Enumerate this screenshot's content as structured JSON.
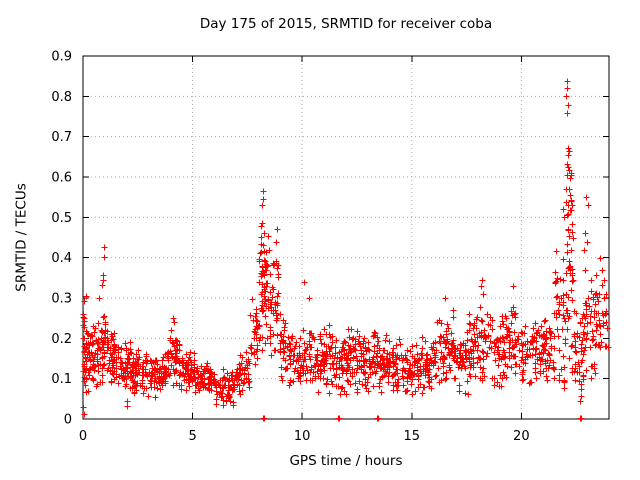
{
  "chart": {
    "title": "Day 175 of 2015, SRMTID for receiver coba",
    "xlabel": "GPS time / hours",
    "ylabel": "SRMTID / TECUs"
  },
  "chart_data": {
    "type": "scatter",
    "title": "Day 175 of 2015, SRMTID for receiver coba",
    "xlabel": "GPS time / hours",
    "ylabel": "SRMTID / TECUs",
    "xlim": [
      0,
      24
    ],
    "ylim": [
      0,
      0.9
    ],
    "xticks": [
      0,
      5,
      10,
      15,
      20
    ],
    "xtick_labels": [
      "0",
      "5",
      "10",
      "15",
      "20"
    ],
    "yticks": [
      0,
      0.1,
      0.2,
      0.3,
      0.4,
      0.5,
      0.6,
      0.7,
      0.8,
      0.9
    ],
    "ytick_labels": [
      "0",
      "0.1",
      "0.2",
      "0.3",
      "0.4",
      "0.5",
      "0.6",
      "0.7",
      "0.8",
      "0.9"
    ],
    "grid": "dotted",
    "grid_color": "#a8a8a8",
    "frame_color": "#000000",
    "marker": "plus",
    "marker_color": "#ff0000",
    "marker_size_px": 7,
    "legend": "none",
    "cluster_encoding": [
      "x_start",
      "x_end",
      "count",
      "y_min",
      "y_max"
    ],
    "clusters": [
      [
        0.0,
        0.15,
        25,
        0.02,
        0.3
      ],
      [
        0.1,
        0.5,
        40,
        0.06,
        0.25
      ],
      [
        0.4,
        0.9,
        40,
        0.08,
        0.26
      ],
      [
        0.85,
        1.15,
        25,
        0.1,
        0.3
      ],
      [
        1.1,
        1.6,
        45,
        0.08,
        0.24
      ],
      [
        1.6,
        2.2,
        50,
        0.07,
        0.2
      ],
      [
        2.2,
        3.0,
        70,
        0.05,
        0.18
      ],
      [
        3.0,
        3.8,
        70,
        0.05,
        0.17
      ],
      [
        3.8,
        4.4,
        50,
        0.08,
        0.23
      ],
      [
        4.4,
        5.2,
        65,
        0.06,
        0.17
      ],
      [
        5.2,
        6.0,
        60,
        0.05,
        0.15
      ],
      [
        6.0,
        7.0,
        70,
        0.025,
        0.13
      ],
      [
        7.0,
        7.6,
        45,
        0.05,
        0.17
      ],
      [
        7.6,
        8.0,
        30,
        0.1,
        0.32
      ],
      [
        8.0,
        8.5,
        55,
        0.14,
        0.5
      ],
      [
        8.1,
        8.35,
        12,
        0.3,
        0.525
      ],
      [
        8.5,
        8.95,
        40,
        0.12,
        0.42
      ],
      [
        8.95,
        9.4,
        35,
        0.08,
        0.28
      ],
      [
        9.4,
        10.0,
        45,
        0.07,
        0.22
      ],
      [
        10.0,
        10.5,
        35,
        0.07,
        0.24
      ],
      [
        10.5,
        11.3,
        65,
        0.06,
        0.24
      ],
      [
        11.3,
        12.0,
        55,
        0.05,
        0.22
      ],
      [
        12.0,
        12.8,
        65,
        0.06,
        0.24
      ],
      [
        12.8,
        13.6,
        65,
        0.06,
        0.22
      ],
      [
        13.6,
        14.5,
        70,
        0.06,
        0.22
      ],
      [
        14.5,
        15.3,
        60,
        0.05,
        0.2
      ],
      [
        15.3,
        16.1,
        60,
        0.06,
        0.21
      ],
      [
        16.1,
        17.0,
        65,
        0.07,
        0.28
      ],
      [
        17.0,
        17.6,
        45,
        0.06,
        0.22
      ],
      [
        17.6,
        18.4,
        60,
        0.08,
        0.3
      ],
      [
        18.4,
        19.3,
        60,
        0.07,
        0.28
      ],
      [
        19.3,
        20.0,
        50,
        0.08,
        0.3
      ],
      [
        20.0,
        20.9,
        65,
        0.08,
        0.26
      ],
      [
        20.9,
        21.5,
        45,
        0.08,
        0.26
      ],
      [
        21.5,
        22.0,
        40,
        0.06,
        0.45
      ],
      [
        22.0,
        22.35,
        35,
        0.1,
        0.6
      ],
      [
        22.1,
        22.3,
        10,
        0.45,
        0.67
      ],
      [
        22.3,
        22.8,
        40,
        0.03,
        0.3
      ],
      [
        22.8,
        23.35,
        45,
        0.08,
        0.38
      ],
      [
        23.35,
        23.95,
        35,
        0.08,
        0.4
      ]
    ],
    "notable_points": [
      [
        0.0,
        0.12
      ],
      [
        0.0,
        0.2
      ],
      [
        0.01,
        0.26
      ],
      [
        0.02,
        0.03
      ],
      [
        0.06,
        0.012
      ],
      [
        0.12,
        0.305
      ],
      [
        0.75,
        0.3
      ],
      [
        0.88,
        0.332
      ],
      [
        0.9,
        0.357
      ],
      [
        0.93,
        0.345
      ],
      [
        0.95,
        0.427
      ],
      [
        0.97,
        0.402
      ],
      [
        2.0,
        0.032
      ],
      [
        2.02,
        0.045
      ],
      [
        4.1,
        0.25
      ],
      [
        4.15,
        0.24
      ],
      [
        8.19,
        0.53
      ],
      [
        8.2,
        0.565
      ],
      [
        8.22,
        0.545
      ],
      [
        8.8,
        0.44
      ],
      [
        8.86,
        0.47
      ],
      [
        10.1,
        0.34
      ],
      [
        10.3,
        0.3
      ],
      [
        16.5,
        0.3
      ],
      [
        18.15,
        0.33
      ],
      [
        18.2,
        0.345
      ],
      [
        18.25,
        0.31
      ],
      [
        19.6,
        0.33
      ],
      [
        21.9,
        0.52
      ],
      [
        21.95,
        0.5
      ],
      [
        22.05,
        0.57
      ],
      [
        22.06,
        0.8
      ],
      [
        22.08,
        0.838
      ],
      [
        22.08,
        0.605
      ],
      [
        22.1,
        0.82
      ],
      [
        22.1,
        0.758
      ],
      [
        22.1,
        0.632
      ],
      [
        22.12,
        0.778
      ],
      [
        22.12,
        0.655
      ],
      [
        22.14,
        0.625
      ],
      [
        22.15,
        0.672
      ],
      [
        22.18,
        0.665
      ],
      [
        22.18,
        0.618
      ],
      [
        22.2,
        0.598
      ],
      [
        22.22,
        0.555
      ],
      [
        22.3,
        0.53
      ],
      [
        22.85,
        0.42
      ],
      [
        22.9,
        0.46
      ],
      [
        22.95,
        0.55
      ],
      [
        23.0,
        0.44
      ],
      [
        23.06,
        0.53
      ],
      [
        23.6,
        0.4
      ],
      [
        23.7,
        0.37
      ],
      [
        23.75,
        0.345
      ],
      [
        23.85,
        0.31
      ]
    ],
    "zero_points": [
      [
        8.22,
        0.003
      ],
      [
        8.28,
        0.003
      ],
      [
        11.62,
        0.003
      ],
      [
        11.68,
        0.003
      ],
      [
        13.4,
        0.003
      ],
      [
        13.44,
        0.003
      ],
      [
        22.66,
        0.003
      ],
      [
        22.72,
        0.003
      ]
    ]
  }
}
